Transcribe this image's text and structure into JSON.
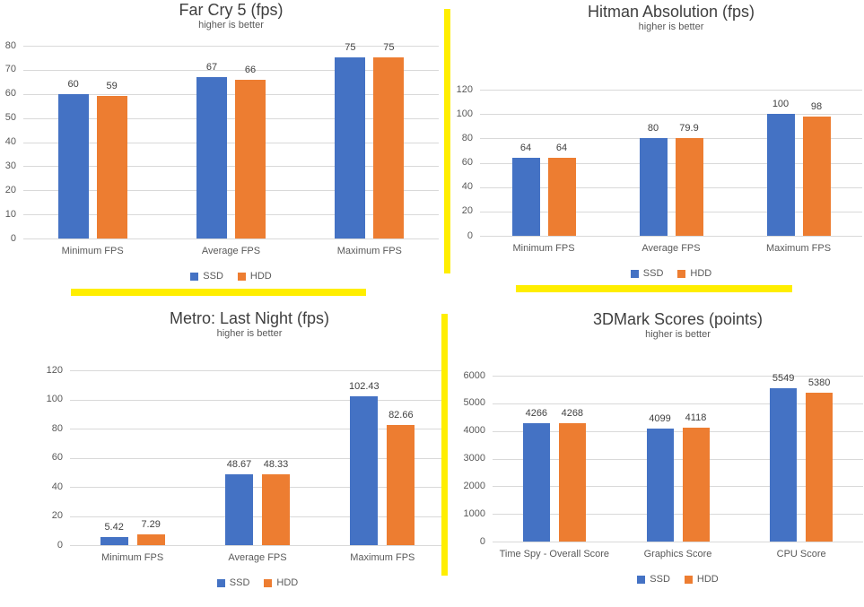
{
  "colors": {
    "ssd": "#4472C4",
    "hdd": "#ED7D31",
    "gridline": "#D9D9D9",
    "divider": "#FFEE00",
    "title_text": "#3F3F3F",
    "label_text": "#595959",
    "value_text": "#404040"
  },
  "chart_data": [
    {
      "type": "bar",
      "title": "Far Cry 5 (fps)",
      "subtitle": "higher is better",
      "categories": [
        "Minimum FPS",
        "Average FPS",
        "Maximum FPS"
      ],
      "series": [
        {
          "name": "SSD",
          "color": "#4472C4",
          "values": [
            60,
            67,
            75
          ]
        },
        {
          "name": "HDD",
          "color": "#ED7D31",
          "values": [
            59,
            66,
            75
          ]
        }
      ],
      "ylim": [
        0,
        80
      ],
      "ytick": 10,
      "grid": true,
      "legend_position": "bottom"
    },
    {
      "type": "bar",
      "title": "Hitman Absolution (fps)",
      "subtitle": "higher is better",
      "categories": [
        "Minimum FPS",
        "Average FPS",
        "Maximum FPS"
      ],
      "series": [
        {
          "name": "SSD",
          "color": "#4472C4",
          "values": [
            64,
            80,
            100
          ]
        },
        {
          "name": "HDD",
          "color": "#ED7D31",
          "values": [
            64,
            79.9,
            98
          ]
        }
      ],
      "ylim": [
        0,
        120
      ],
      "ytick": 20,
      "grid": true,
      "legend_position": "bottom"
    },
    {
      "type": "bar",
      "title": "Metro: Last Night (fps)",
      "subtitle": "higher is better",
      "categories": [
        "Minimum FPS",
        "Average FPS",
        "Maximum FPS"
      ],
      "series": [
        {
          "name": "SSD",
          "color": "#4472C4",
          "values": [
            5.42,
            48.67,
            102.43
          ]
        },
        {
          "name": "HDD",
          "color": "#ED7D31",
          "values": [
            7.29,
            48.33,
            82.66
          ]
        }
      ],
      "ylim": [
        0,
        120
      ],
      "ytick": 20,
      "grid": true,
      "legend_position": "bottom"
    },
    {
      "type": "bar",
      "title": "3DMark Scores (points)",
      "subtitle": "higher is better",
      "categories": [
        "Time Spy - Overall Score",
        "Graphics Score",
        "CPU Score"
      ],
      "series": [
        {
          "name": "SSD",
          "color": "#4472C4",
          "values": [
            4266,
            4099,
            5549
          ]
        },
        {
          "name": "HDD",
          "color": "#ED7D31",
          "values": [
            4268,
            4118,
            5380
          ]
        }
      ],
      "ylim": [
        0,
        6000
      ],
      "ytick": 1000,
      "grid": true,
      "legend_position": "bottom"
    }
  ]
}
